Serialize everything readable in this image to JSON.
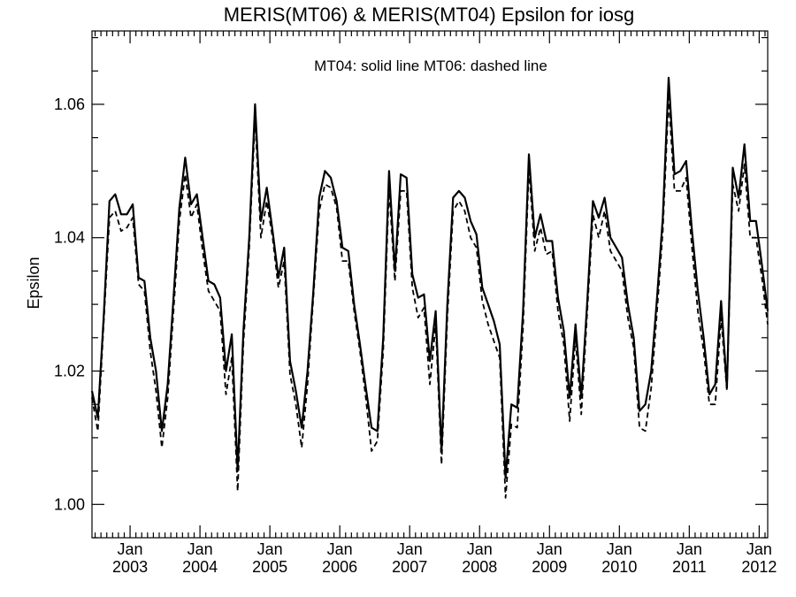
{
  "chart_data": {
    "type": "line",
    "title": "MERIS(MT06) & MERIS(MT04)  Epsilon for iosg",
    "annotation": "MT04: solid line   MT06: dashed line",
    "xlabel": "",
    "ylabel": "Epsilon",
    "xlim": [
      "2002-06-15",
      "2012-02-15"
    ],
    "ylim": [
      0.995,
      1.071
    ],
    "yticks": [
      1.0,
      1.02,
      1.04,
      1.06
    ],
    "ytick_labels": [
      "1.00",
      "1.02",
      "1.04",
      "1.06"
    ],
    "xticks": [
      {
        "date": "2003-01-01",
        "month": "Jan",
        "year": "2003"
      },
      {
        "date": "2004-01-01",
        "month": "Jan",
        "year": "2004"
      },
      {
        "date": "2005-01-01",
        "month": "Jan",
        "year": "2005"
      },
      {
        "date": "2006-01-01",
        "month": "Jan",
        "year": "2006"
      },
      {
        "date": "2007-01-01",
        "month": "Jan",
        "year": "2007"
      },
      {
        "date": "2008-01-01",
        "month": "Jan",
        "year": "2008"
      },
      {
        "date": "2009-01-01",
        "month": "Jan",
        "year": "2009"
      },
      {
        "date": "2010-01-01",
        "month": "Jan",
        "year": "2010"
      },
      {
        "date": "2011-01-01",
        "month": "Jan",
        "year": "2011"
      },
      {
        "date": "2012-01-01",
        "month": "Jan",
        "year": "2012"
      }
    ],
    "x": [
      "2002-06",
      "2002-07",
      "2002-08",
      "2002-09",
      "2002-10",
      "2002-11",
      "2002-12",
      "2003-01",
      "2003-02",
      "2003-03",
      "2003-04",
      "2003-05",
      "2003-06",
      "2003-07",
      "2003-08",
      "2003-09",
      "2003-10",
      "2003-11",
      "2003-12",
      "2004-01",
      "2004-02",
      "2004-03",
      "2004-04",
      "2004-05",
      "2004-06",
      "2004-07",
      "2004-08",
      "2004-09",
      "2004-10",
      "2004-11",
      "2004-12",
      "2005-01",
      "2005-02",
      "2005-03",
      "2005-04",
      "2005-05",
      "2005-06",
      "2005-07",
      "2005-08",
      "2005-09",
      "2005-10",
      "2005-11",
      "2005-12",
      "2006-01",
      "2006-02",
      "2006-03",
      "2006-04",
      "2006-05",
      "2006-06",
      "2006-07",
      "2006-08",
      "2006-09",
      "2006-10",
      "2006-11",
      "2006-12",
      "2007-01",
      "2007-02",
      "2007-03",
      "2007-04",
      "2007-05",
      "2007-06",
      "2007-07",
      "2007-08",
      "2007-09",
      "2007-10",
      "2007-11",
      "2007-12",
      "2008-01",
      "2008-02",
      "2008-03",
      "2008-04",
      "2008-05",
      "2008-06",
      "2008-07",
      "2008-08",
      "2008-09",
      "2008-10",
      "2008-11",
      "2008-12",
      "2009-01",
      "2009-02",
      "2009-03",
      "2009-04",
      "2009-05",
      "2009-06",
      "2009-07",
      "2009-08",
      "2009-09",
      "2009-10",
      "2009-11",
      "2009-12",
      "2010-01",
      "2010-02",
      "2010-03",
      "2010-04",
      "2010-05",
      "2010-06",
      "2010-07",
      "2010-08",
      "2010-09",
      "2010-10",
      "2010-11",
      "2010-12",
      "2011-01",
      "2011-02",
      "2011-03",
      "2011-04",
      "2011-05",
      "2011-06",
      "2011-07",
      "2011-08",
      "2011-09",
      "2011-10",
      "2011-11",
      "2011-12",
      "2012-01",
      "2012-02"
    ],
    "series": [
      {
        "name": "MT04",
        "style": "solid",
        "color": "#000000",
        "values": [
          1.017,
          1.013,
          1.028,
          1.0455,
          1.0465,
          1.0435,
          1.0435,
          1.045,
          1.034,
          1.0335,
          1.025,
          1.02,
          1.011,
          1.018,
          1.031,
          1.0445,
          1.052,
          1.045,
          1.0465,
          1.04,
          1.0335,
          1.033,
          1.031,
          1.02,
          1.0255,
          1.005,
          1.026,
          1.04,
          1.06,
          1.0425,
          1.0475,
          1.041,
          1.034,
          1.0385,
          1.0215,
          1.017,
          1.0115,
          1.02,
          1.032,
          1.046,
          1.05,
          1.049,
          1.0455,
          1.0385,
          1.038,
          1.03,
          1.024,
          1.0175,
          1.0115,
          1.011,
          1.025,
          1.05,
          1.035,
          1.0495,
          1.049,
          1.0345,
          1.031,
          1.0315,
          1.0215,
          1.029,
          1.008,
          1.03,
          1.046,
          1.047,
          1.046,
          1.0425,
          1.0405,
          1.0325,
          1.03,
          1.0275,
          1.024,
          1.004,
          1.015,
          1.0145,
          1.029,
          1.0525,
          1.04,
          1.0435,
          1.0395,
          1.0395,
          1.031,
          1.026,
          1.016,
          1.027,
          1.016,
          1.03,
          1.0455,
          1.043,
          1.046,
          1.04,
          1.0385,
          1.037,
          1.03,
          1.025,
          1.014,
          1.015,
          1.02,
          1.031,
          1.043,
          1.064,
          1.0495,
          1.05,
          1.0515,
          1.041,
          1.032,
          1.025,
          1.0165,
          1.018,
          1.0305,
          1.0175,
          1.0505,
          1.046,
          1.054,
          1.0425,
          1.0425,
          1.036,
          1.029
        ]
      },
      {
        "name": "MT06",
        "style": "dashed",
        "color": "#000000",
        "values": [
          1.016,
          1.011,
          1.027,
          1.043,
          1.044,
          1.041,
          1.0415,
          1.043,
          1.033,
          1.032,
          1.023,
          1.017,
          1.0085,
          1.016,
          1.029,
          1.0425,
          1.0495,
          1.043,
          1.045,
          1.038,
          1.032,
          1.0305,
          1.029,
          1.0165,
          1.022,
          1.002,
          1.024,
          1.0385,
          1.058,
          1.04,
          1.0455,
          1.04,
          1.0325,
          1.0365,
          1.0195,
          1.015,
          1.0085,
          1.018,
          1.031,
          1.044,
          1.048,
          1.0475,
          1.0445,
          1.0365,
          1.0365,
          1.029,
          1.023,
          1.016,
          1.008,
          1.0095,
          1.023,
          1.0475,
          1.0335,
          1.047,
          1.047,
          1.0325,
          1.028,
          1.0295,
          1.018,
          1.027,
          1.006,
          1.028,
          1.044,
          1.0455,
          1.044,
          1.04,
          1.0385,
          1.0305,
          1.027,
          1.0245,
          1.022,
          1.001,
          1.012,
          1.0115,
          1.0265,
          1.0505,
          1.038,
          1.0415,
          1.0375,
          1.038,
          1.029,
          1.024,
          1.0125,
          1.025,
          1.0135,
          1.0285,
          1.0435,
          1.04,
          1.044,
          1.038,
          1.0365,
          1.035,
          1.028,
          1.0235,
          1.0115,
          1.011,
          1.0175,
          1.029,
          1.041,
          1.061,
          1.047,
          1.047,
          1.049,
          1.0385,
          1.029,
          1.023,
          1.015,
          1.015,
          1.028,
          1.017,
          1.048,
          1.044,
          1.051,
          1.04,
          1.04,
          1.034,
          1.027
        ]
      }
    ],
    "grid": false,
    "legend": "none"
  }
}
